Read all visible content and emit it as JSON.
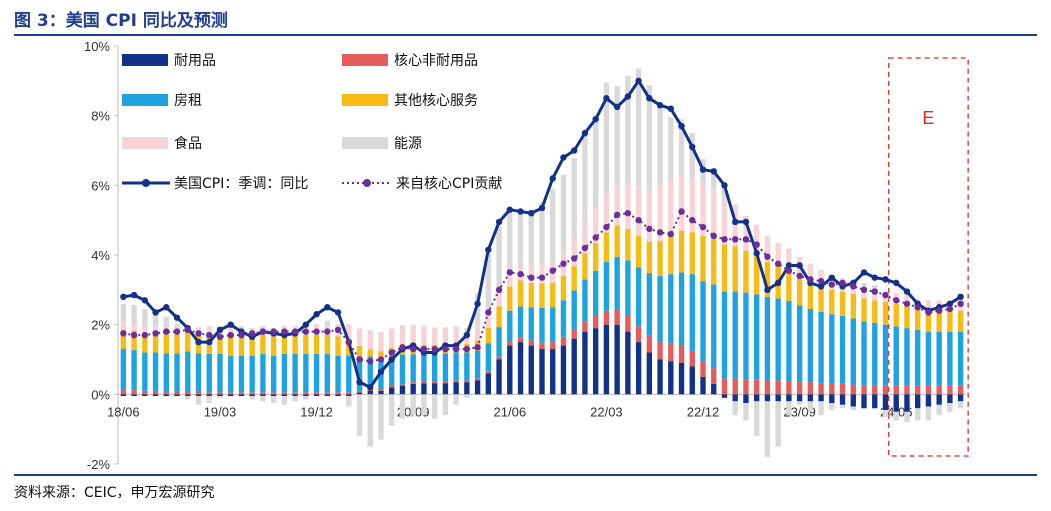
{
  "figure": {
    "title": "图 3：美国 CPI 同比及预测",
    "source": "资料来源：CEIC，申万宏源研究"
  },
  "chart_data": {
    "type": "bar",
    "stacked": true,
    "ylim": [
      -2,
      10
    ],
    "yticks": [
      "-2%",
      "0%",
      "2%",
      "4%",
      "6%",
      "8%",
      "10%"
    ],
    "ytick_values": [
      -2,
      0,
      2,
      4,
      6,
      8,
      10
    ],
    "xtick_labels": [
      "18/06",
      "19/03",
      "19/12",
      "20/09",
      "21/06",
      "22/03",
      "22/12",
      "23/09",
      "24/06"
    ],
    "xtick_index": [
      0,
      9,
      18,
      27,
      36,
      45,
      54,
      63,
      72
    ],
    "months": [
      "18/06",
      "18/07",
      "18/08",
      "18/09",
      "18/10",
      "18/11",
      "18/12",
      "19/01",
      "19/02",
      "19/03",
      "19/04",
      "19/05",
      "19/06",
      "19/07",
      "19/08",
      "19/09",
      "19/10",
      "19/11",
      "19/12",
      "20/01",
      "20/02",
      "20/03",
      "20/04",
      "20/05",
      "20/06",
      "20/07",
      "20/08",
      "20/09",
      "20/10",
      "20/11",
      "20/12",
      "21/01",
      "21/02",
      "21/03",
      "21/04",
      "21/05",
      "21/06",
      "21/07",
      "21/08",
      "21/09",
      "21/10",
      "21/11",
      "21/12",
      "22/01",
      "22/02",
      "22/03",
      "22/04",
      "22/05",
      "22/06",
      "22/07",
      "22/08",
      "22/09",
      "22/10",
      "22/11",
      "22/12",
      "23/01",
      "23/02",
      "23/03",
      "23/04",
      "23/05",
      "23/06",
      "23/07",
      "23/08",
      "23/09",
      "23/10",
      "23/11",
      "23/12",
      "24/01",
      "24/02",
      "24/03",
      "24/04",
      "24/05",
      "24/06",
      "24/07",
      "24/08",
      "24/09",
      "24/10",
      "24/11",
      "24/12"
    ],
    "stack_series": [
      {
        "name": "耐用品",
        "color": "#12328a",
        "values": [
          -0.05,
          -0.05,
          -0.05,
          -0.05,
          -0.05,
          -0.05,
          -0.05,
          -0.05,
          -0.05,
          -0.05,
          -0.05,
          -0.05,
          -0.05,
          -0.05,
          -0.05,
          -0.05,
          -0.05,
          -0.05,
          -0.05,
          -0.05,
          -0.05,
          -0.05,
          0.05,
          0.1,
          0.1,
          0.2,
          0.25,
          0.3,
          0.32,
          0.32,
          0.32,
          0.35,
          0.35,
          0.4,
          0.6,
          1.0,
          1.4,
          1.5,
          1.4,
          1.3,
          1.3,
          1.4,
          1.6,
          1.8,
          1.9,
          2.0,
          2.0,
          1.8,
          1.5,
          1.2,
          1.0,
          0.95,
          0.9,
          0.8,
          0.5,
          0.3,
          -0.1,
          -0.2,
          -0.25,
          -0.2,
          -0.2,
          -0.2,
          -0.2,
          -0.2,
          -0.2,
          -0.2,
          -0.25,
          -0.3,
          -0.35,
          -0.4,
          -0.4,
          -0.45,
          -0.5,
          -0.5,
          -0.4,
          -0.35,
          -0.3,
          -0.25,
          -0.2
        ]
      },
      {
        "name": "核心非耐用品",
        "color": "#e35d5d",
        "values": [
          0.15,
          0.12,
          0.1,
          0.1,
          0.08,
          0.08,
          0.08,
          0.08,
          0.06,
          0.06,
          0.06,
          0.06,
          0.06,
          0.06,
          0.06,
          0.06,
          0.06,
          0.06,
          0.06,
          0.06,
          0.06,
          0.06,
          0.04,
          0.04,
          0.04,
          0.04,
          0.04,
          0.05,
          0.05,
          0.05,
          0.05,
          0.05,
          0.05,
          0.05,
          0.06,
          0.08,
          0.1,
          0.12,
          0.15,
          0.18,
          0.2,
          0.25,
          0.28,
          0.3,
          0.35,
          0.4,
          0.45,
          0.45,
          0.45,
          0.48,
          0.5,
          0.5,
          0.5,
          0.45,
          0.45,
          0.45,
          0.45,
          0.45,
          0.42,
          0.42,
          0.4,
          0.4,
          0.38,
          0.35,
          0.35,
          0.32,
          0.3,
          0.3,
          0.28,
          0.25,
          0.25,
          0.25,
          0.25,
          0.25,
          0.25,
          0.25,
          0.25,
          0.25,
          0.25
        ]
      },
      {
        "name": "房租",
        "color": "#1fa3e0",
        "values": [
          1.15,
          1.15,
          1.1,
          1.1,
          1.1,
          1.1,
          1.15,
          1.1,
          1.1,
          1.1,
          1.05,
          1.05,
          1.05,
          1.1,
          1.05,
          1.1,
          1.1,
          1.1,
          1.1,
          1.1,
          1.05,
          1.05,
          1.0,
          0.95,
          0.9,
          0.85,
          0.85,
          0.8,
          0.8,
          0.8,
          0.8,
          0.8,
          0.8,
          0.8,
          0.8,
          0.85,
          0.9,
          0.9,
          0.95,
          1.0,
          1.0,
          1.05,
          1.1,
          1.2,
          1.3,
          1.4,
          1.5,
          1.6,
          1.7,
          1.8,
          1.9,
          2.0,
          2.1,
          2.2,
          2.3,
          2.4,
          2.5,
          2.5,
          2.5,
          2.45,
          2.4,
          2.35,
          2.3,
          2.2,
          2.1,
          2.05,
          2.0,
          1.95,
          1.9,
          1.85,
          1.8,
          1.75,
          1.7,
          1.65,
          1.6,
          1.55,
          1.55,
          1.55,
          1.55
        ]
      },
      {
        "name": "其他核心服务",
        "color": "#f7bb16",
        "values": [
          0.55,
          0.55,
          0.55,
          0.55,
          0.55,
          0.55,
          0.55,
          0.55,
          0.55,
          0.55,
          0.55,
          0.55,
          0.55,
          0.55,
          0.55,
          0.55,
          0.55,
          0.55,
          0.55,
          0.55,
          0.55,
          0.5,
          0.3,
          0.2,
          0.2,
          0.25,
          0.3,
          0.3,
          0.25,
          0.25,
          0.25,
          0.25,
          0.25,
          0.3,
          0.45,
          0.6,
          0.7,
          0.75,
          0.7,
          0.7,
          0.7,
          0.7,
          0.7,
          0.75,
          0.8,
          0.85,
          0.9,
          0.9,
          0.9,
          0.9,
          1.0,
          1.1,
          1.2,
          1.2,
          1.3,
          1.35,
          1.35,
          1.3,
          1.2,
          1.1,
          1.0,
          0.95,
          0.9,
          0.85,
          0.8,
          0.75,
          0.7,
          0.7,
          0.7,
          0.65,
          0.65,
          0.65,
          0.65,
          0.65,
          0.6,
          0.6,
          0.6,
          0.6,
          0.6
        ]
      },
      {
        "name": "食品",
        "color": "#f7d3d5",
        "values": [
          0.2,
          0.2,
          0.2,
          0.2,
          0.2,
          0.2,
          0.2,
          0.2,
          0.25,
          0.25,
          0.25,
          0.25,
          0.25,
          0.25,
          0.25,
          0.25,
          0.25,
          0.25,
          0.25,
          0.25,
          0.3,
          0.4,
          0.5,
          0.55,
          0.55,
          0.55,
          0.55,
          0.55,
          0.55,
          0.5,
          0.5,
          0.5,
          0.45,
          0.45,
          0.35,
          0.3,
          0.3,
          0.4,
          0.5,
          0.55,
          0.6,
          0.7,
          0.8,
          0.9,
          1.0,
          1.1,
          1.2,
          1.3,
          1.4,
          1.5,
          1.6,
          1.6,
          1.6,
          1.55,
          1.5,
          1.4,
          1.3,
          1.2,
          1.0,
          0.9,
          0.75,
          0.65,
          0.6,
          0.55,
          0.5,
          0.45,
          0.4,
          0.38,
          0.35,
          0.35,
          0.33,
          0.3,
          0.3,
          0.3,
          0.3,
          0.3,
          0.3,
          0.3,
          0.3
        ]
      },
      {
        "name": "能源",
        "color": "#d9d9d9",
        "values": [
          0.55,
          0.55,
          0.5,
          0.4,
          0.3,
          0.1,
          -0.1,
          -0.25,
          -0.2,
          -0.05,
          0.1,
          0.05,
          -0.1,
          -0.15,
          -0.2,
          -0.25,
          -0.15,
          -0.1,
          0.05,
          0.15,
          0.05,
          -0.3,
          -1.2,
          -1.5,
          -1.3,
          -0.9,
          -0.7,
          -0.6,
          -0.6,
          -0.7,
          -0.6,
          -0.3,
          -0.1,
          0.9,
          1.8,
          2.0,
          1.8,
          1.6,
          1.6,
          1.8,
          2.1,
          2.2,
          2.3,
          2.6,
          2.6,
          3.2,
          2.8,
          3.1,
          3.4,
          3.0,
          2.3,
          1.8,
          1.6,
          1.3,
          0.7,
          0.6,
          0.4,
          -0.4,
          -0.5,
          -1.0,
          -1.6,
          -1.3,
          -0.4,
          -0.1,
          -0.3,
          -0.4,
          -0.2,
          -0.1,
          -0.1,
          0.1,
          0.1,
          -0.2,
          -0.25,
          -0.3,
          -0.35,
          -0.4,
          -0.3,
          -0.25,
          -0.2
        ]
      }
    ],
    "line_series": [
      {
        "name": "美国CPI：季调：同比",
        "color": "#12328a",
        "style": "solid-marker",
        "values": [
          2.8,
          2.85,
          2.7,
          2.35,
          2.5,
          2.2,
          1.9,
          1.5,
          1.5,
          1.85,
          2.0,
          1.8,
          1.65,
          1.8,
          1.75,
          1.7,
          1.75,
          2.0,
          2.3,
          2.5,
          2.35,
          1.5,
          0.35,
          0.2,
          0.65,
          1.0,
          1.3,
          1.4,
          1.2,
          1.2,
          1.4,
          1.4,
          1.7,
          2.6,
          4.15,
          4.95,
          5.3,
          5.25,
          5.2,
          5.35,
          6.2,
          6.8,
          7.0,
          7.5,
          7.9,
          8.5,
          8.25,
          8.55,
          9.0,
          8.5,
          8.3,
          8.2,
          7.7,
          7.1,
          6.45,
          6.4,
          6.0,
          4.95,
          4.95,
          4.05,
          3.0,
          3.2,
          3.7,
          3.7,
          3.2,
          3.1,
          3.35,
          3.1,
          3.2,
          3.5,
          3.35,
          3.3,
          3.2,
          2.95,
          2.6,
          2.4,
          2.5,
          2.6,
          2.8
        ]
      },
      {
        "name": "来自核心CPI贡献",
        "color": "#6b2f9a",
        "style": "dotted-marker",
        "values": [
          1.75,
          1.7,
          1.7,
          1.75,
          1.8,
          1.8,
          1.85,
          1.75,
          1.7,
          1.65,
          1.7,
          1.7,
          1.75,
          1.8,
          1.8,
          1.8,
          1.8,
          1.8,
          1.8,
          1.8,
          1.85,
          1.5,
          1.0,
          0.95,
          1.0,
          1.2,
          1.35,
          1.3,
          1.3,
          1.3,
          1.3,
          1.3,
          1.3,
          1.35,
          2.35,
          3.0,
          3.5,
          3.45,
          3.35,
          3.35,
          3.55,
          3.75,
          3.9,
          4.2,
          4.5,
          4.8,
          5.15,
          5.2,
          5.0,
          4.75,
          4.65,
          4.6,
          5.25,
          5.0,
          4.8,
          4.55,
          4.45,
          4.45,
          4.45,
          4.3,
          3.95,
          3.75,
          3.55,
          3.4,
          3.3,
          3.25,
          3.15,
          3.2,
          3.1,
          3.0,
          2.95,
          2.85,
          2.7,
          2.6,
          2.5,
          2.35,
          2.4,
          2.45,
          2.6
        ]
      }
    ],
    "forecast_box": {
      "label": "E",
      "start_index": 72,
      "end_index": 78
    }
  }
}
